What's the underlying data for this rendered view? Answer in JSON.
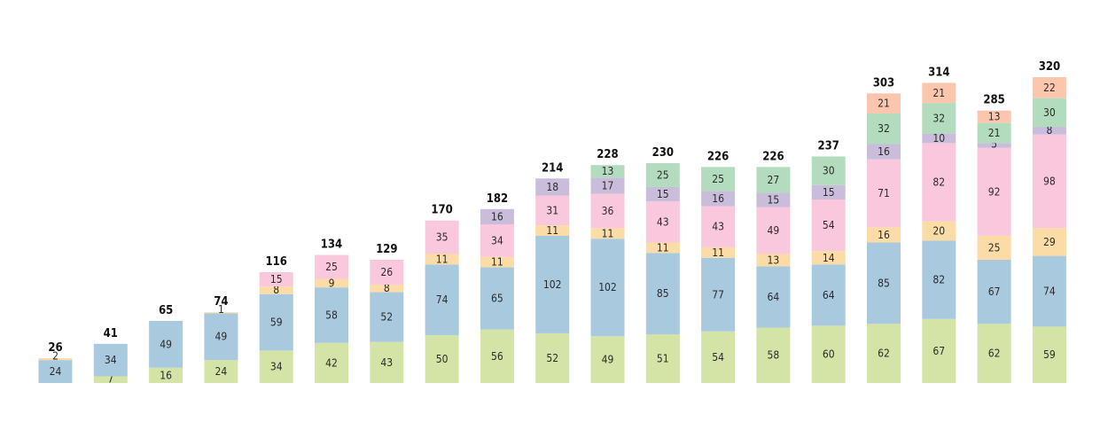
{
  "chart_data": {
    "type": "bar",
    "stacked": true,
    "categories": [
      "",
      "",
      "",
      "",
      "",
      "",
      "",
      "",
      "",
      "",
      "",
      "",
      "",
      "",
      "",
      "",
      "",
      "",
      ""
    ],
    "series": [
      {
        "color": "#d4e3a6",
        "values": [
          0,
          7,
          16,
          24,
          34,
          42,
          43,
          50,
          56,
          52,
          49,
          51,
          54,
          58,
          60,
          62,
          67,
          62,
          59
        ]
      },
      {
        "color": "#a9c9df",
        "values": [
          24,
          34,
          49,
          49,
          59,
          58,
          52,
          74,
          65,
          102,
          102,
          85,
          77,
          64,
          64,
          85,
          82,
          67,
          74
        ]
      },
      {
        "color": "#fbdba6",
        "values": [
          2,
          0,
          0,
          1,
          8,
          9,
          8,
          11,
          11,
          11,
          11,
          11,
          11,
          13,
          14,
          16,
          20,
          25,
          29
        ]
      },
      {
        "color": "#fac8dc",
        "values": [
          0,
          0,
          0,
          0,
          15,
          25,
          26,
          35,
          34,
          31,
          36,
          43,
          43,
          49,
          54,
          71,
          82,
          92,
          98
        ]
      },
      {
        "color": "#c9bddb",
        "values": [
          0,
          0,
          0,
          0,
          0,
          0,
          0,
          0,
          16,
          18,
          17,
          15,
          16,
          15,
          15,
          16,
          10,
          5,
          8
        ]
      },
      {
        "color": "#b3dbbd",
        "values": [
          0,
          0,
          0,
          0,
          0,
          0,
          0,
          0,
          0,
          0,
          13,
          25,
          25,
          27,
          30,
          32,
          32,
          21,
          30
        ]
      },
      {
        "color": "#fbc6ad",
        "values": [
          0,
          0,
          0,
          0,
          0,
          0,
          0,
          0,
          0,
          0,
          0,
          0,
          0,
          0,
          0,
          21,
          21,
          13,
          22
        ]
      }
    ],
    "totals": [
      26,
      41,
      65,
      74,
      116,
      134,
      129,
      170,
      182,
      214,
      228,
      230,
      226,
      226,
      237,
      303,
      314,
      285,
      320
    ],
    "title": "",
    "xlabel": "",
    "ylabel": "",
    "ylim": [
      0,
      320
    ],
    "grid": false,
    "legend": "none"
  }
}
